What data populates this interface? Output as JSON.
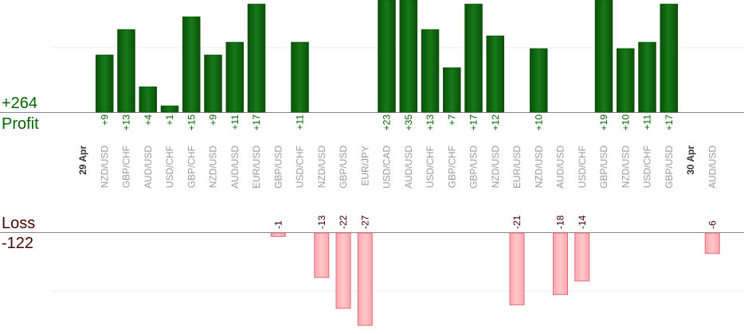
{
  "summary": {
    "total_profit": "+264",
    "profit_label": "Profit",
    "loss_label": "Loss",
    "total_loss": "-122"
  },
  "colors": {
    "profit_dark": "#0b5d0b",
    "profit_light": "#1a8a1a",
    "loss_fill": "#ffb3b8",
    "loss_stroke": "#e06a78",
    "profit_text": "#006400",
    "loss_text": "#3a0000",
    "axis": "#888888",
    "grid": "#eeeeee",
    "category_text": "#999999",
    "date_text": "#333333"
  },
  "chart_data": {
    "type": "bar",
    "title": "",
    "xlabel": "",
    "ylabel": "",
    "grid": true,
    "categories": [
      {
        "date": "29 Apr"
      },
      {
        "pair": "NZD/USD",
        "value": 9
      },
      {
        "pair": "GBP/CHF",
        "value": 13
      },
      {
        "pair": "AUD/USD",
        "value": 4
      },
      {
        "pair": "USD/CHF",
        "value": 1
      },
      {
        "pair": "GBP/CHF",
        "value": 15
      },
      {
        "pair": "NZD/USD",
        "value": 9
      },
      {
        "pair": "AUD/USD",
        "value": 11
      },
      {
        "pair": "EUR/USD",
        "value": 17
      },
      {
        "pair": "GBP/USD",
        "value": -1
      },
      {
        "pair": "USD/CHF",
        "value": 11
      },
      {
        "pair": "NZD/USD",
        "value": -13
      },
      {
        "pair": "GBP/USD",
        "value": -22
      },
      {
        "pair": "EUR/JPY",
        "value": -27
      },
      {
        "pair": "USD/CAD",
        "value": 23
      },
      {
        "pair": "AUD/USD",
        "value": 35
      },
      {
        "pair": "USD/CHF",
        "value": 13
      },
      {
        "pair": "GBP/CHF",
        "value": 7
      },
      {
        "pair": "GBP/USD",
        "value": 17
      },
      {
        "pair": "NZD/USD",
        "value": 12
      },
      {
        "pair": "EUR/USD",
        "value": -21
      },
      {
        "pair": "NZD/USD",
        "value": 10
      },
      {
        "pair": "AUD/USD",
        "value": -18
      },
      {
        "pair": "USD/CHF",
        "value": -14
      },
      {
        "pair": "GBP/USD",
        "value": 19
      },
      {
        "pair": "NZD/USD",
        "value": 10
      },
      {
        "pair": "USD/CHF",
        "value": 11
      },
      {
        "pair": "GBP/USD",
        "value": 17
      },
      {
        "date": "30 Apr"
      },
      {
        "pair": "AUD/USD",
        "value": -6
      }
    ]
  }
}
